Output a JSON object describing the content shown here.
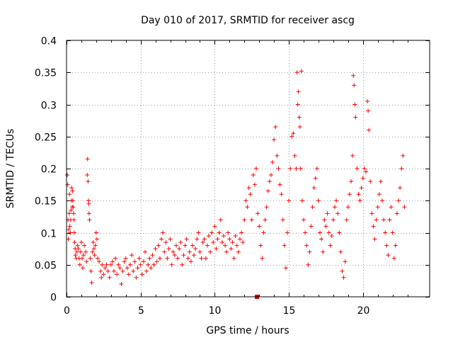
{
  "chart_data": {
    "type": "scatter",
    "title": "Day 010 of 2017, SRMTID for receiver ascg",
    "xlabel": "GPS time / hours",
    "ylabel": "SRMTID / TECUs",
    "xlim": [
      0,
      24.5
    ],
    "ylim": [
      0,
      0.4
    ],
    "xticks": [
      0,
      5,
      10,
      15,
      20
    ],
    "xtick_labels": [
      "0",
      "5",
      "10",
      "15",
      "20"
    ],
    "yticks": [
      0,
      0.05,
      0.1,
      0.15,
      0.2,
      0.25,
      0.3,
      0.35,
      0.4
    ],
    "ytick_labels": [
      "0",
      "0.05",
      "0.1",
      "0.15",
      "0.2",
      "0.25",
      "0.3",
      "0.35",
      "0.4"
    ],
    "grid": true,
    "point_color": "#ff0000",
    "marker": "+",
    "highlight": {
      "x": 12.85,
      "y": 0.0,
      "color": "#e00000"
    },
    "series": [
      {
        "name": "SRMTID",
        "points": [
          [
            0.05,
            0.19
          ],
          [
            0.08,
            0.175
          ],
          [
            0.1,
            0.12
          ],
          [
            0.12,
            0.09
          ],
          [
            0.15,
            0.105
          ],
          [
            0.18,
            0.13
          ],
          [
            0.2,
            0.16
          ],
          [
            0.22,
            0.11
          ],
          [
            0.25,
            0.1
          ],
          [
            0.28,
            0.12
          ],
          [
            0.3,
            0.135
          ],
          [
            0.33,
            0.15
          ],
          [
            0.35,
            0.17
          ],
          [
            0.38,
            0.14
          ],
          [
            0.4,
            0.165
          ],
          [
            0.42,
            0.15
          ],
          [
            0.45,
            0.14
          ],
          [
            0.48,
            0.13
          ],
          [
            0.5,
            0.12
          ],
          [
            0.52,
            0.1
          ],
          [
            0.55,
            0.085
          ],
          [
            0.58,
            0.075
          ],
          [
            0.6,
            0.065
          ],
          [
            0.65,
            0.06
          ],
          [
            0.7,
            0.07
          ],
          [
            0.75,
            0.08
          ],
          [
            0.8,
            0.075
          ],
          [
            0.85,
            0.06
          ],
          [
            0.9,
            0.05
          ],
          [
            0.95,
            0.07
          ],
          [
            1.0,
            0.085
          ],
          [
            1.05,
            0.06
          ],
          [
            1.1,
            0.045
          ],
          [
            1.15,
            0.065
          ],
          [
            1.2,
            0.08
          ],
          [
            1.3,
            0.07
          ],
          [
            1.35,
            0.055
          ],
          [
            1.4,
            0.19
          ],
          [
            1.42,
            0.215
          ],
          [
            1.45,
            0.18
          ],
          [
            1.48,
            0.15
          ],
          [
            1.5,
            0.145
          ],
          [
            1.52,
            0.13
          ],
          [
            1.55,
            0.12
          ],
          [
            1.6,
            0.06
          ],
          [
            1.65,
            0.04
          ],
          [
            1.7,
            0.022
          ],
          [
            1.75,
            0.07
          ],
          [
            1.8,
            0.085
          ],
          [
            1.85,
            0.075
          ],
          [
            1.9,
            0.065
          ],
          [
            1.95,
            0.08
          ],
          [
            2.0,
            0.1
          ],
          [
            2.05,
            0.09
          ],
          [
            2.1,
            0.06
          ],
          [
            2.2,
            0.055
          ],
          [
            2.3,
            0.04
          ],
          [
            2.35,
            0.03
          ],
          [
            2.4,
            0.05
          ],
          [
            2.5,
            0.035
          ],
          [
            2.6,
            0.045
          ],
          [
            2.7,
            0.05
          ],
          [
            2.8,
            0.04
          ],
          [
            2.9,
            0.03
          ],
          [
            3.0,
            0.05
          ],
          [
            3.1,
            0.055
          ],
          [
            3.2,
            0.04
          ],
          [
            3.3,
            0.06
          ],
          [
            3.4,
            0.035
          ],
          [
            3.5,
            0.05
          ],
          [
            3.6,
            0.045
          ],
          [
            3.7,
            0.02
          ],
          [
            3.8,
            0.04
          ],
          [
            3.9,
            0.055
          ],
          [
            4.0,
            0.06
          ],
          [
            4.1,
            0.045
          ],
          [
            4.2,
            0.035
          ],
          [
            4.3,
            0.05
          ],
          [
            4.4,
            0.065
          ],
          [
            4.5,
            0.04
          ],
          [
            4.6,
            0.055
          ],
          [
            4.7,
            0.03
          ],
          [
            4.8,
            0.045
          ],
          [
            4.9,
            0.06
          ],
          [
            5.0,
            0.05
          ],
          [
            5.1,
            0.035
          ],
          [
            5.2,
            0.055
          ],
          [
            5.3,
            0.07
          ],
          [
            5.4,
            0.04
          ],
          [
            5.5,
            0.05
          ],
          [
            5.6,
            0.06
          ],
          [
            5.7,
            0.045
          ],
          [
            5.8,
            0.065
          ],
          [
            5.9,
            0.05
          ],
          [
            6.0,
            0.075
          ],
          [
            6.1,
            0.055
          ],
          [
            6.2,
            0.08
          ],
          [
            6.3,
            0.06
          ],
          [
            6.4,
            0.09
          ],
          [
            6.5,
            0.1
          ],
          [
            6.6,
            0.07
          ],
          [
            6.7,
            0.085
          ],
          [
            6.8,
            0.06
          ],
          [
            6.9,
            0.075
          ],
          [
            7.0,
            0.09
          ],
          [
            7.1,
            0.05
          ],
          [
            7.2,
            0.07
          ],
          [
            7.3,
            0.065
          ],
          [
            7.4,
            0.08
          ],
          [
            7.5,
            0.06
          ],
          [
            7.6,
            0.075
          ],
          [
            7.7,
            0.085
          ],
          [
            7.8,
            0.05
          ],
          [
            7.9,
            0.065
          ],
          [
            8.0,
            0.08
          ],
          [
            8.1,
            0.09
          ],
          [
            8.2,
            0.06
          ],
          [
            8.3,
            0.07
          ],
          [
            8.4,
            0.055
          ],
          [
            8.5,
            0.08
          ],
          [
            8.6,
            0.065
          ],
          [
            8.7,
            0.075
          ],
          [
            8.8,
            0.09
          ],
          [
            8.9,
            0.1
          ],
          [
            9.0,
            0.07
          ],
          [
            9.1,
            0.06
          ],
          [
            9.2,
            0.085
          ],
          [
            9.3,
            0.09
          ],
          [
            9.4,
            0.06
          ],
          [
            9.5,
            0.08
          ],
          [
            9.6,
            0.095
          ],
          [
            9.7,
            0.07
          ],
          [
            9.8,
            0.1
          ],
          [
            9.9,
            0.085
          ],
          [
            10.0,
            0.11
          ],
          [
            10.1,
            0.075
          ],
          [
            10.2,
            0.09
          ],
          [
            10.3,
            0.1
          ],
          [
            10.4,
            0.12
          ],
          [
            10.5,
            0.085
          ],
          [
            10.6,
            0.095
          ],
          [
            10.7,
            0.08
          ],
          [
            10.8,
            0.07
          ],
          [
            10.9,
            0.1
          ],
          [
            11.0,
            0.09
          ],
          [
            11.1,
            0.075
          ],
          [
            11.2,
            0.085
          ],
          [
            11.3,
            0.06
          ],
          [
            11.4,
            0.095
          ],
          [
            11.5,
            0.08
          ],
          [
            11.6,
            0.07
          ],
          [
            11.7,
            0.09
          ],
          [
            11.8,
            0.1
          ],
          [
            11.9,
            0.085
          ],
          [
            12.0,
            0.12
          ],
          [
            12.1,
            0.15
          ],
          [
            12.2,
            0.14
          ],
          [
            12.3,
            0.17
          ],
          [
            12.4,
            0.16
          ],
          [
            12.5,
            0.12
          ],
          [
            12.6,
            0.19
          ],
          [
            12.7,
            0.175
          ],
          [
            12.8,
            0.2
          ],
          [
            12.9,
            0.13
          ],
          [
            13.0,
            0.11
          ],
          [
            13.1,
            0.08
          ],
          [
            13.2,
            0.06
          ],
          [
            13.3,
            0.1
          ],
          [
            13.4,
            0.12
          ],
          [
            13.5,
            0.14
          ],
          [
            13.6,
            0.165
          ],
          [
            13.7,
            0.18
          ],
          [
            13.8,
            0.19
          ],
          [
            13.9,
            0.21
          ],
          [
            14.0,
            0.245
          ],
          [
            14.1,
            0.265
          ],
          [
            14.2,
            0.22
          ],
          [
            14.3,
            0.2
          ],
          [
            14.4,
            0.175
          ],
          [
            14.5,
            0.16
          ],
          [
            14.6,
            0.12
          ],
          [
            14.7,
            0.08
          ],
          [
            14.8,
            0.045
          ],
          [
            14.9,
            0.1
          ],
          [
            15.0,
            0.15
          ],
          [
            15.1,
            0.2
          ],
          [
            15.2,
            0.25
          ],
          [
            15.3,
            0.255
          ],
          [
            15.4,
            0.22
          ],
          [
            15.5,
            0.2
          ],
          [
            15.55,
            0.35
          ],
          [
            15.6,
            0.3
          ],
          [
            15.65,
            0.32
          ],
          [
            15.7,
            0.28
          ],
          [
            15.75,
            0.265
          ],
          [
            15.8,
            0.2
          ],
          [
            15.85,
            0.352
          ],
          [
            15.9,
            0.15
          ],
          [
            16.0,
            0.12
          ],
          [
            16.1,
            0.1
          ],
          [
            16.2,
            0.08
          ],
          [
            16.3,
            0.05
          ],
          [
            16.4,
            0.07
          ],
          [
            16.5,
            0.11
          ],
          [
            16.6,
            0.14
          ],
          [
            16.7,
            0.17
          ],
          [
            16.8,
            0.185
          ],
          [
            16.9,
            0.2
          ],
          [
            17.0,
            0.15
          ],
          [
            17.1,
            0.1
          ],
          [
            17.2,
            0.09
          ],
          [
            17.3,
            0.07
          ],
          [
            17.4,
            0.12
          ],
          [
            17.5,
            0.11
          ],
          [
            17.6,
            0.13
          ],
          [
            17.7,
            0.1
          ],
          [
            17.8,
            0.08
          ],
          [
            17.9,
            0.095
          ],
          [
            18.0,
            0.12
          ],
          [
            18.1,
            0.14
          ],
          [
            18.2,
            0.15
          ],
          [
            18.3,
            0.13
          ],
          [
            18.4,
            0.1
          ],
          [
            18.5,
            0.07
          ],
          [
            18.6,
            0.04
          ],
          [
            18.7,
            0.03
          ],
          [
            18.8,
            0.055
          ],
          [
            18.9,
            0.12
          ],
          [
            19.0,
            0.14
          ],
          [
            19.1,
            0.16
          ],
          [
            19.2,
            0.18
          ],
          [
            19.3,
            0.22
          ],
          [
            19.35,
            0.345
          ],
          [
            19.4,
            0.33
          ],
          [
            19.45,
            0.3
          ],
          [
            19.5,
            0.28
          ],
          [
            19.6,
            0.2
          ],
          [
            19.7,
            0.16
          ],
          [
            19.8,
            0.15
          ],
          [
            19.9,
            0.17
          ],
          [
            20.0,
            0.185
          ],
          [
            20.1,
            0.2
          ],
          [
            20.2,
            0.195
          ],
          [
            20.3,
            0.305
          ],
          [
            20.35,
            0.29
          ],
          [
            20.4,
            0.26
          ],
          [
            20.5,
            0.18
          ],
          [
            20.6,
            0.13
          ],
          [
            20.7,
            0.11
          ],
          [
            20.8,
            0.09
          ],
          [
            20.9,
            0.12
          ],
          [
            21.0,
            0.14
          ],
          [
            21.1,
            0.16
          ],
          [
            21.2,
            0.18
          ],
          [
            21.3,
            0.15
          ],
          [
            21.4,
            0.12
          ],
          [
            21.5,
            0.1
          ],
          [
            21.6,
            0.08
          ],
          [
            21.7,
            0.065
          ],
          [
            21.8,
            0.12
          ],
          [
            21.9,
            0.14
          ],
          [
            22.0,
            0.1
          ],
          [
            22.1,
            0.06
          ],
          [
            22.2,
            0.08
          ],
          [
            22.3,
            0.13
          ],
          [
            22.4,
            0.15
          ],
          [
            22.5,
            0.17
          ],
          [
            22.6,
            0.2
          ],
          [
            22.7,
            0.22
          ],
          [
            22.8,
            0.14
          ]
        ]
      }
    ]
  }
}
